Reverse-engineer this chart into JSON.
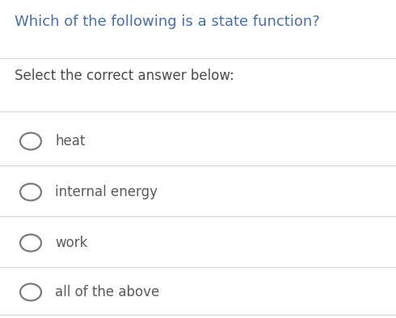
{
  "title": "Which of the following is a state function?",
  "subtitle": "Select the correct answer below:",
  "options": [
    "heat",
    "internal energy",
    "work",
    "all of the above"
  ],
  "background_color": "#ffffff",
  "title_color": "#4a6fa5",
  "subtitle_color": "#4a4a4a",
  "option_text_color": "#5a5a5a",
  "divider_color": "#d8d8d8",
  "circle_edge_color": "#7a7a7a",
  "title_fontsize": 13.0,
  "subtitle_fontsize": 12.0,
  "option_fontsize": 12.0,
  "fig_width": 4.9,
  "fig_height": 3.94,
  "dpi": 100
}
